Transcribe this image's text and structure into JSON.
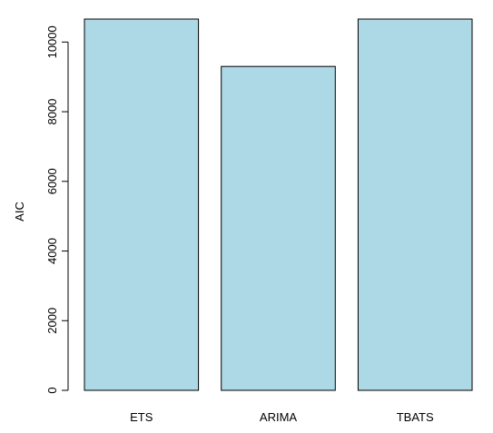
{
  "chart_data": {
    "type": "bar",
    "categories": [
      "ETS",
      "ARIMA",
      "TBATS"
    ],
    "values": [
      10660,
      9300,
      10660
    ],
    "title": "",
    "xlabel": "",
    "ylabel": "AIC",
    "ylim": [
      0,
      10660
    ],
    "yticks": [
      0,
      2000,
      4000,
      6000,
      8000,
      10000
    ],
    "bar_color": "#add8e6",
    "border_color": "#000000",
    "grid": false,
    "legend": "none"
  }
}
